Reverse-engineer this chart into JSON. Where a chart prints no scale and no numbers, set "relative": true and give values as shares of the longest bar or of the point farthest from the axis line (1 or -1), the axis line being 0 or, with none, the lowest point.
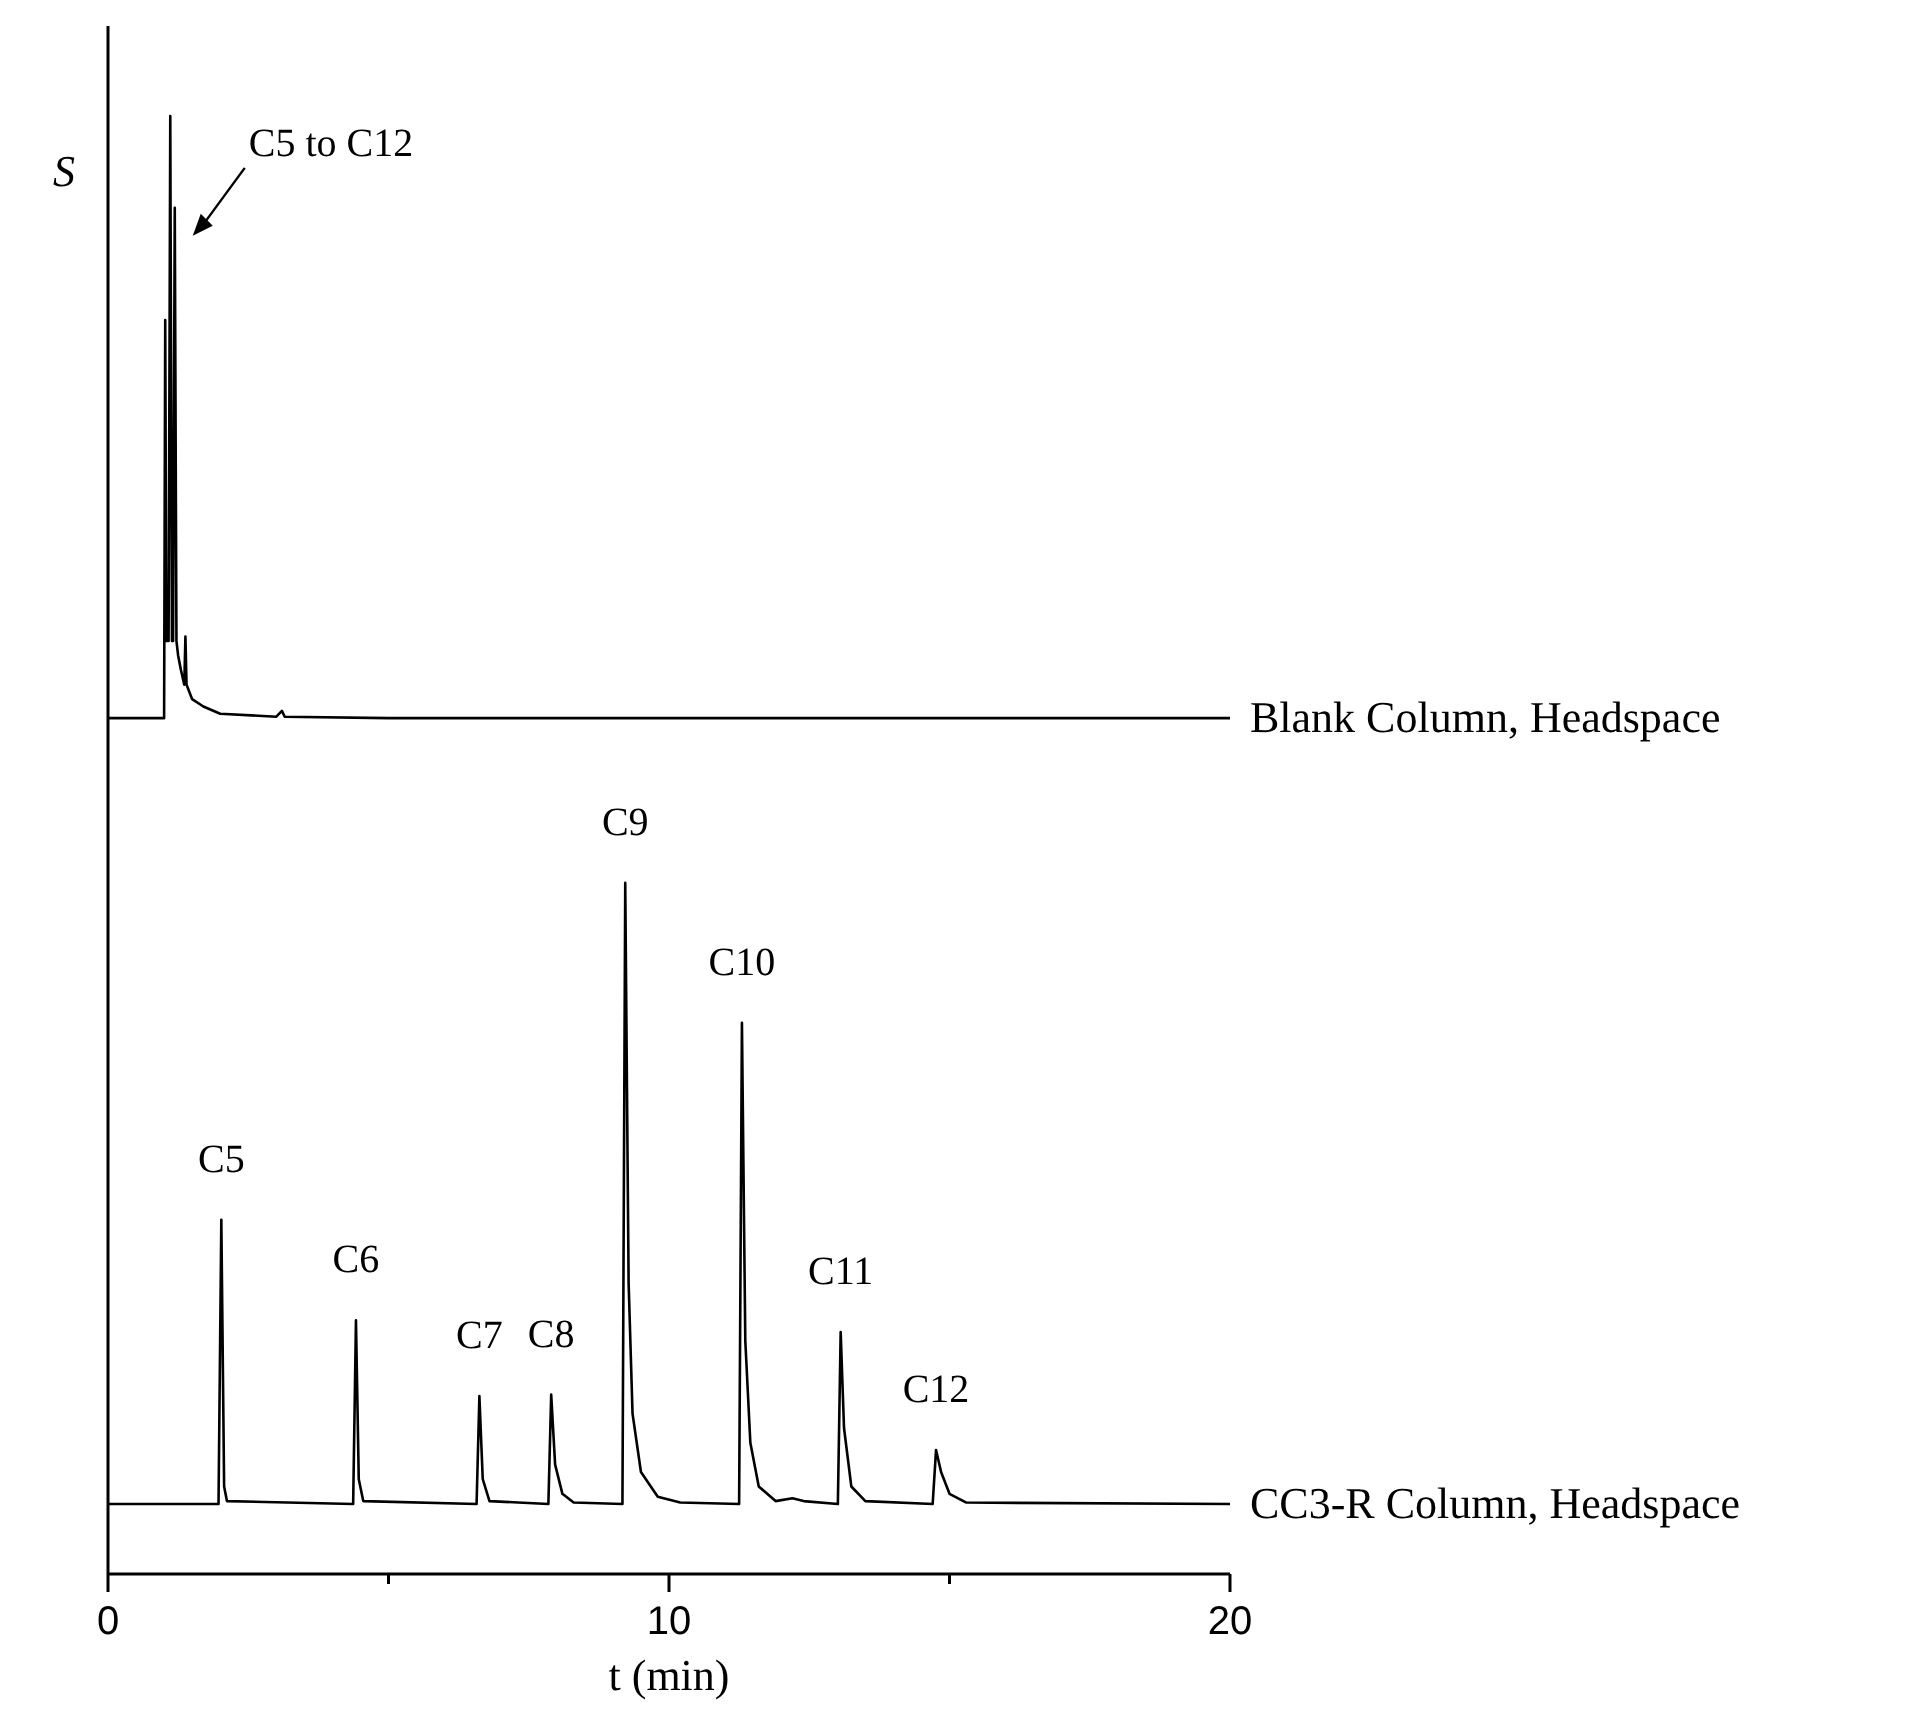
{
  "chart_data": {
    "type": "line",
    "relative": true,
    "xlabel": "t (min)",
    "ylabel": "S",
    "xlim": [
      0,
      20
    ],
    "xticks": [
      0,
      {
        "value": 5,
        "label": null
      },
      10,
      {
        "value": 15,
        "label": null
      },
      20
    ],
    "grid": false,
    "marker": "none",
    "line_style": "solid",
    "series": [
      {
        "name": "Blank Column, Headspace",
        "color": "#000000",
        "x": [
          0,
          1.0,
          1.02,
          1.04,
          1.08,
          1.11,
          1.14,
          1.16,
          1.19,
          1.22,
          1.25,
          1.3,
          1.36,
          1.38,
          1.4,
          1.5,
          1.7,
          2.0,
          3.0,
          3.1,
          3.15,
          5,
          20
        ],
        "values": [
          0.587,
          0.587,
          0.86,
          0.64,
          0.64,
          1.0,
          0.64,
          0.64,
          0.937,
          0.64,
          0.63,
          0.62,
          0.61,
          0.643,
          0.61,
          0.6,
          0.595,
          0.59,
          0.588,
          0.592,
          0.588,
          0.587,
          0.587
        ]
      },
      {
        "name": "CC3-R Column, Headspace",
        "color": "#000000",
        "x": [
          0,
          1.97,
          2.02,
          2.07,
          2.12,
          4.37,
          4.42,
          4.47,
          4.55,
          6.57,
          6.62,
          6.68,
          6.8,
          7.85,
          7.9,
          7.97,
          8.1,
          8.3,
          9.17,
          9.22,
          9.28,
          9.35,
          9.5,
          9.8,
          10.2,
          11.25,
          11.3,
          11.36,
          11.45,
          11.6,
          11.9,
          12.2,
          12.4,
          13.01,
          13.06,
          13.12,
          13.25,
          13.5,
          14.7,
          14.76,
          14.85,
          15.0,
          15.3,
          20
        ],
        "values": [
          0.048,
          0.048,
          0.243,
          0.06,
          0.05,
          0.048,
          0.174,
          0.065,
          0.05,
          0.048,
          0.122,
          0.065,
          0.05,
          0.048,
          0.123,
          0.075,
          0.055,
          0.049,
          0.048,
          0.474,
          0.2,
          0.11,
          0.07,
          0.053,
          0.049,
          0.048,
          0.378,
          0.16,
          0.09,
          0.06,
          0.05,
          0.052,
          0.05,
          0.048,
          0.166,
          0.1,
          0.06,
          0.05,
          0.048,
          0.085,
          0.07,
          0.055,
          0.049,
          0.048
        ]
      }
    ],
    "annotations": [
      {
        "text": "C5 to C12",
        "x": 1.19,
        "y": 0.937
      },
      {
        "text": "C5",
        "x": 2.02,
        "y": 0.243
      },
      {
        "text": "C6",
        "x": 4.42,
        "y": 0.174
      },
      {
        "text": "C7",
        "x": 6.62,
        "y": 0.122
      },
      {
        "text": "C8",
        "x": 7.9,
        "y": 0.123
      },
      {
        "text": "C9",
        "x": 9.22,
        "y": 0.474
      },
      {
        "text": "C10",
        "x": 11.3,
        "y": 0.378
      },
      {
        "text": "C11",
        "x": 13.06,
        "y": 0.166
      },
      {
        "text": "C12",
        "x": 14.76,
        "y": 0.085
      }
    ]
  }
}
